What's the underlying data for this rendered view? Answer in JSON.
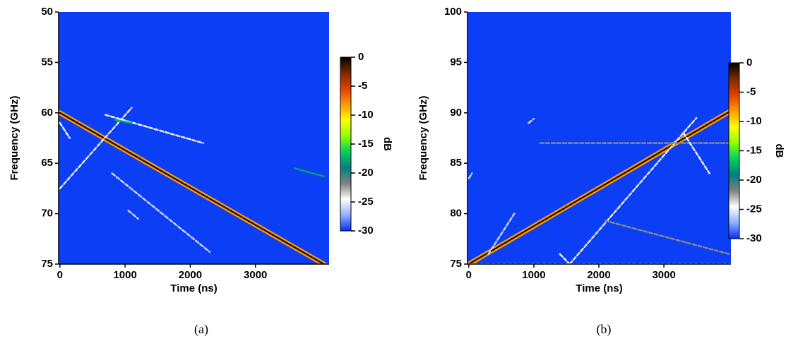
{
  "chart_data": [
    {
      "type": "spectrogram",
      "caption": "(a)",
      "xlabel": "Time (ns)",
      "ylabel": "Frequency (GHz)",
      "zlabel": "dB",
      "xlim": [
        -20,
        4130
      ],
      "xticks": [
        0,
        1000,
        2000,
        3000
      ],
      "ylim": [
        75,
        50
      ],
      "yticks": [
        50,
        55,
        60,
        65,
        70,
        75
      ],
      "zlim": [
        -30,
        0
      ],
      "zticks": [
        0,
        -5,
        -10,
        -15,
        -20,
        -25,
        -30
      ],
      "background": "#0b3ef5",
      "colors": [
        "#000000",
        "#7a2a00",
        "#e04000",
        "#ff9a00",
        "#ffff00",
        "#90ff00",
        "#00d060",
        "#008080",
        "#808080",
        "#ffffff",
        "#90b0ff",
        "#0030ff"
      ],
      "traces": [
        {
          "x": [
            0,
            4130
          ],
          "y": [
            60,
            75.3
          ],
          "z": -8
        },
        {
          "x": [
            0,
            4130
          ],
          "y": [
            60,
            75.3
          ],
          "z": 0
        },
        {
          "x": [
            0,
            1100
          ],
          "y": [
            67.5,
            59.5
          ],
          "z": -24
        },
        {
          "x": [
            700,
            2200
          ],
          "y": [
            60.2,
            63
          ],
          "z": -25
        },
        {
          "x": [
            850,
            1100
          ],
          "y": [
            60.7,
            61
          ],
          "z": -17
        },
        {
          "x": [
            0,
            150
          ],
          "y": [
            61,
            62.5
          ],
          "z": -25
        },
        {
          "x": [
            800,
            2300
          ],
          "y": [
            66,
            73.8
          ],
          "z": -26
        },
        {
          "x": [
            1050,
            1200
          ],
          "y": [
            69.7,
            70.5
          ],
          "z": -26
        },
        {
          "x": [
            3600,
            4050
          ],
          "y": [
            65.5,
            66.3
          ],
          "z": -18
        }
      ]
    },
    {
      "type": "spectrogram",
      "caption": "(b)",
      "xlabel": "Time (ns)",
      "ylabel": "Frequency (GHz)",
      "zlabel": "dB",
      "xlim": [
        -20,
        4030
      ],
      "xticks": [
        0,
        1000,
        2000,
        3000
      ],
      "ylim": [
        75,
        100
      ],
      "yticks": [
        75,
        80,
        85,
        90,
        95,
        100
      ],
      "zlim": [
        -30,
        0
      ],
      "zticks": [
        0,
        -5,
        -10,
        -15,
        -20,
        -25,
        -30
      ],
      "background": "#0b3ef5",
      "colors": [
        "#000000",
        "#7a2a00",
        "#e04000",
        "#ff9a00",
        "#ffff00",
        "#90ff00",
        "#00d060",
        "#008080",
        "#808080",
        "#ffffff",
        "#90b0ff",
        "#0030ff"
      ],
      "traces": [
        {
          "x": [
            0,
            4030
          ],
          "y": [
            75,
            90.2
          ],
          "z": -8
        },
        {
          "x": [
            0,
            4030
          ],
          "y": [
            75,
            90.2
          ],
          "z": 0
        },
        {
          "x": [
            1550,
            3500
          ],
          "y": [
            75,
            89.5
          ],
          "z": -24
        },
        {
          "x": [
            1100,
            4030
          ],
          "y": [
            87,
            87
          ],
          "z": -22
        },
        {
          "x": [
            2100,
            4000
          ],
          "y": [
            79.3,
            76
          ],
          "z": -22
        },
        {
          "x": [
            920,
            1000
          ],
          "y": [
            89,
            89.4
          ],
          "z": -26
        },
        {
          "x": [
            0,
            4030
          ],
          "y": [
            75,
            75
          ],
          "z": -26
        },
        {
          "x": [
            1400,
            1550
          ],
          "y": [
            76,
            75
          ],
          "z": -25
        },
        {
          "x": [
            3300,
            3700
          ],
          "y": [
            88,
            84
          ],
          "z": -25
        },
        {
          "x": [
            0,
            50
          ],
          "y": [
            83.5,
            84
          ],
          "z": -26
        },
        {
          "x": [
            300,
            700
          ],
          "y": [
            76,
            80
          ],
          "z": -26
        }
      ]
    }
  ]
}
